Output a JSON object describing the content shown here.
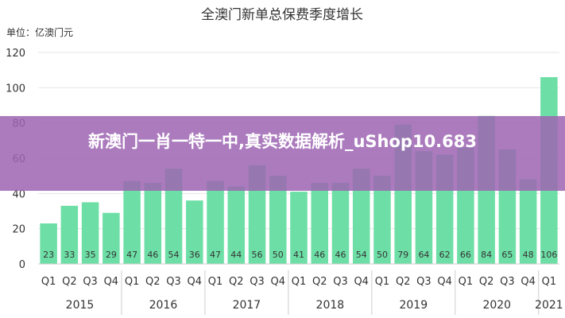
{
  "banner": {
    "text": "新澳门一肖一特一中,真实数据解析_uShop10.683"
  },
  "colors": {
    "bar": "#6ddfa6",
    "banner": "#9d65b2",
    "grid": "#e6e6e6",
    "text": "#333333"
  },
  "chart_data": {
    "type": "bar",
    "title": "全澳门新单总保费季度增长",
    "unit_label": "单位：亿澳门元",
    "ylim": [
      0,
      120
    ],
    "yticks": [
      0,
      20,
      40,
      60,
      80,
      100,
      120
    ],
    "grid": true,
    "categories": [
      "Q1",
      "Q2",
      "Q3",
      "Q4",
      "Q1",
      "Q2",
      "Q3",
      "Q4",
      "Q1",
      "Q2",
      "Q3",
      "Q4",
      "Q1",
      "Q2",
      "Q3",
      "Q4",
      "Q1",
      "Q2",
      "Q3",
      "Q4",
      "Q1",
      "Q2",
      "Q3",
      "Q4",
      "Q1"
    ],
    "year_groups": [
      {
        "year": "2015",
        "start": 0,
        "count": 4
      },
      {
        "year": "2016",
        "start": 4,
        "count": 4
      },
      {
        "year": "2017",
        "start": 8,
        "count": 4
      },
      {
        "year": "2018",
        "start": 12,
        "count": 4
      },
      {
        "year": "2019",
        "start": 16,
        "count": 4
      },
      {
        "year": "2020",
        "start": 20,
        "count": 4
      },
      {
        "year": "2021",
        "start": 24,
        "count": 1
      }
    ],
    "values": [
      23,
      33,
      35,
      29,
      47,
      46,
      54,
      36,
      47,
      44,
      56,
      50,
      41,
      46,
      46,
      54,
      50,
      79,
      64,
      62,
      66,
      84,
      65,
      48,
      106
    ]
  }
}
